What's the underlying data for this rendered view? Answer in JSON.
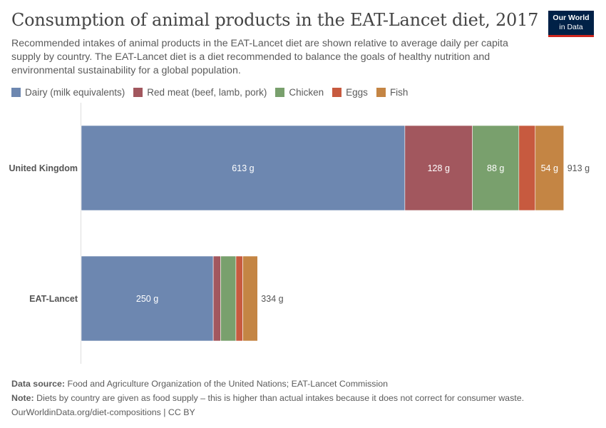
{
  "header": {
    "title": "Consumption of animal products in the EAT-Lancet diet, 2017",
    "subtitle": "Recommended intakes of animal products in the EAT-Lancet diet are shown relative to average daily per capita supply by country. The EAT-Lancet diet is a diet recommended to balance the goals of healthy nutrition and environmental sustainability for a global population.",
    "logo_line1": "Our World",
    "logo_line2": "in Data"
  },
  "chart_data": {
    "type": "bar",
    "orientation": "horizontal",
    "stacked": true,
    "categories": [
      "United Kingdom",
      "EAT-Lancet"
    ],
    "series": [
      {
        "name": "Dairy (milk equivalents)",
        "color": "#6d87b0",
        "values": [
          613,
          250
        ],
        "labels": [
          "613 g",
          "250 g"
        ]
      },
      {
        "name": "Red meat (beef, lamb, pork)",
        "color": "#a2575e",
        "values": [
          128,
          14
        ],
        "labels": [
          "128 g",
          ""
        ]
      },
      {
        "name": "Chicken",
        "color": "#79a06d",
        "values": [
          88,
          29
        ],
        "labels": [
          "88 g",
          ""
        ]
      },
      {
        "name": "Eggs",
        "color": "#c75a3f",
        "values": [
          31,
          13
        ],
        "labels": [
          "",
          ""
        ]
      },
      {
        "name": "Fish",
        "color": "#c48544",
        "values": [
          54,
          28
        ],
        "labels": [
          "54 g",
          ""
        ]
      }
    ],
    "totals": [
      "913 g",
      "334 g"
    ],
    "xlim": [
      0,
      913
    ],
    "grid": false,
    "legend_position": "top-left"
  },
  "footer": {
    "source_label": "Data source:",
    "source_text": "Food and Agriculture Organization of the United Nations; EAT-Lancet Commission",
    "note_label": "Note:",
    "note_text": "Diets by country are given as food supply – this is higher than actual intakes because it does not correct for consumer waste.",
    "url": "OurWorldinData.org/diet-compositions",
    "license": "| CC BY"
  }
}
